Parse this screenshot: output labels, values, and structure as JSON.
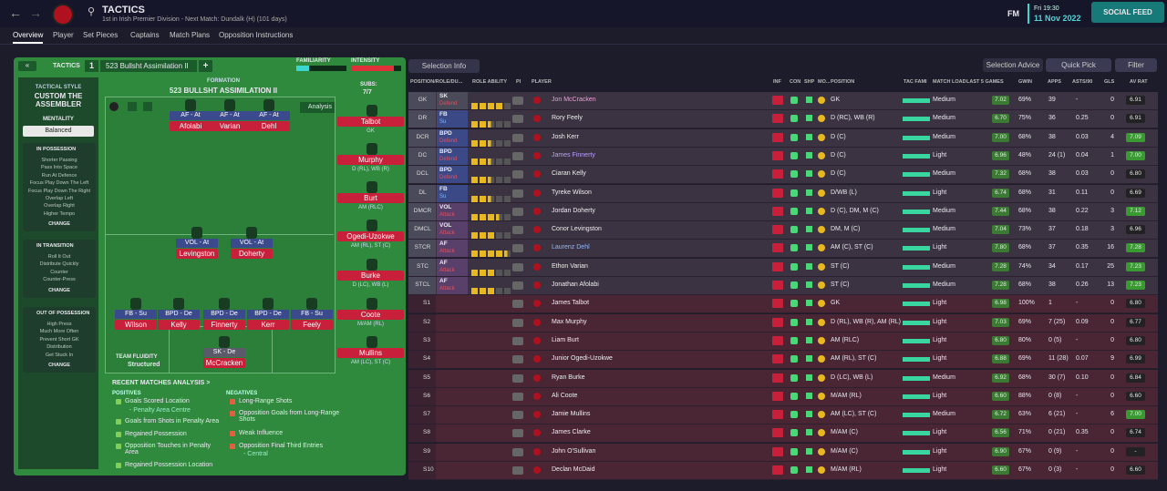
{
  "header": {
    "title": "TACTICS",
    "subtitle": "1st in Irish Premier Division - Next Match: Dundalk (H) (101 days)",
    "fm": "FM",
    "time": "Fri 19:30",
    "date": "11 Nov 2022",
    "social_feed": "SOCIAL FEED"
  },
  "tabs": [
    "Overview",
    "Player",
    "Set Pieces",
    "Captains",
    "Match Plans",
    "Opposition Instructions"
  ],
  "tactics": {
    "label": "TACTICS",
    "slot": "1",
    "name": "523 Bullsht Assimilation II",
    "plus": "+",
    "familiarity": "FAMILIARITY",
    "intensity": "INTENSITY",
    "formation_label": "FORMATION",
    "formation": "523 BULLSHT ASSIMILATION II",
    "subs_label": "SUBS:",
    "subs_count": "7/7",
    "analysis": "Analysis",
    "style_label": "TACTICAL STYLE",
    "style": "CUSTOM THE ASSEMBLER",
    "mentality_label": "MENTALITY",
    "mentality": "Balanced",
    "sections": [
      {
        "title": "IN POSSESSION",
        "items": [
          "Shorter Passing",
          "Pass Into Space",
          "Run At Defence",
          "Focus Play Down The Left",
          "Focus Play Down The Right",
          "Overlap Left",
          "Overlap Right",
          "Higher Tempo"
        ],
        "change": "CHANGE"
      },
      {
        "title": "IN TRANSITION",
        "items": [
          "Roll It Out",
          "Distribute Quickly",
          "Counter",
          "Counter-Press"
        ],
        "change": "CHANGE"
      },
      {
        "title": "OUT OF POSSESSION",
        "items": [
          "High Press",
          "Much More Often",
          "Prevent Short GK",
          "Distribution",
          "Get Stuck In"
        ],
        "change": "CHANGE"
      }
    ],
    "fluidity_label": "TEAM FLUIDITY",
    "fluidity": "Structured",
    "pitch": [
      {
        "role": "AF - At",
        "name": "Afolabi"
      },
      {
        "role": "AF - At",
        "name": "Varian"
      },
      {
        "role": "AF - At",
        "name": "Dehl"
      },
      {
        "role": "VOL - At",
        "name": "Levingston"
      },
      {
        "role": "VOL - At",
        "name": "Doherty"
      },
      {
        "role": "FB - Su",
        "name": "Wilson"
      },
      {
        "role": "BPD - De",
        "name": "Kelly"
      },
      {
        "role": "BPD - De",
        "name": "Finnerty"
      },
      {
        "role": "BPD - De",
        "name": "Kerr"
      },
      {
        "role": "FB - Su",
        "name": "Feely"
      },
      {
        "role": "SK - De",
        "name": "McCracken"
      }
    ],
    "subs": [
      {
        "name": "Talbot",
        "pos": "GK"
      },
      {
        "name": "Murphy",
        "pos": "D (RL), WB (R)"
      },
      {
        "name": "Burt",
        "pos": "AM (RLC)"
      },
      {
        "name": "Ogedi-Uzokwe",
        "pos": "AM (RL), ST (C)"
      },
      {
        "name": "Burke",
        "pos": "D (LC), WB (L)"
      },
      {
        "name": "Coote",
        "pos": "M/AM (RL)"
      },
      {
        "name": "Mullins",
        "pos": "AM (LC), ST (C)"
      }
    ],
    "recent": {
      "title": "RECENT MATCHES ANALYSIS >",
      "positives_label": "POSITIVES",
      "negatives_label": "NEGATIVES",
      "positives": [
        {
          "text": "Goals Scored Location",
          "sub": "- Penalty Area Centre"
        },
        {
          "text": "Goals from Shots in Penalty Area"
        },
        {
          "text": "Regained Possession"
        },
        {
          "text": "Opposition Touches in Penalty Area"
        },
        {
          "text": "Regained Possession Location"
        }
      ],
      "negatives": [
        {
          "text": "Long-Range Shots"
        },
        {
          "text": "Opposition Goals from Long-Range Shots"
        },
        {
          "text": "Weak Influence"
        },
        {
          "text": "Opposition Final Third Entries",
          "sub": "- Central"
        }
      ]
    }
  },
  "table": {
    "toolbar": {
      "selection_info": "Selection Info",
      "selection_advice": "Selection Advice",
      "quick_pick": "Quick Pick",
      "filter": "Filter"
    },
    "columns": [
      "POSITION/ROLE/DU...",
      "ROLE ABILITY",
      "PI",
      "PLAYER",
      "INF",
      "CON",
      "SHP",
      "MO...",
      "POSITION",
      "TAC FAMI",
      "MATCH LOAD",
      "LAST 5 GAMES",
      "GWIN",
      "APPS",
      "ASTS/90",
      "GLS",
      "AV RAT"
    ],
    "rows": [
      {
        "pos": "GK",
        "role": "SK",
        "duty": "Defend",
        "stars": 4,
        "player": "Jon McCracken",
        "position": "GK",
        "load": "Medium",
        "form": "7.02",
        "gwin": "69%",
        "apps": "39",
        "asts": "-",
        "gls": "0",
        "av": "6.91"
      },
      {
        "pos": "DR",
        "role": "FB",
        "duty": "Su",
        "stars": 2.5,
        "player": "Rory Feely",
        "position": "D (RC), WB (R)",
        "load": "Medium",
        "form": "6.70",
        "gwin": "75%",
        "apps": "36",
        "asts": "0.25",
        "gls": "0",
        "av": "6.91"
      },
      {
        "pos": "DCR",
        "role": "BPD",
        "duty": "Defend",
        "stars": 2.5,
        "player": "Josh Kerr",
        "position": "D (C)",
        "load": "Medium",
        "form": "7.00",
        "gwin": "68%",
        "apps": "38",
        "asts": "0.03",
        "gls": "4",
        "av": "7.09"
      },
      {
        "pos": "DC",
        "role": "BPD",
        "duty": "Defend",
        "stars": 2.5,
        "player": "James Finnerty",
        "position": "D (C)",
        "load": "Light",
        "form": "6.96",
        "gwin": "48%",
        "apps": "24 (1)",
        "asts": "0.04",
        "gls": "1",
        "av": "7.00"
      },
      {
        "pos": "DCL",
        "role": "BPD",
        "duty": "Defend",
        "stars": 2.5,
        "player": "Ciaran Kelly",
        "position": "D (C)",
        "load": "Medium",
        "form": "7.32",
        "gwin": "68%",
        "apps": "38",
        "asts": "0.03",
        "gls": "0",
        "av": "6.80"
      },
      {
        "pos": "DL",
        "role": "FB",
        "duty": "Su",
        "stars": 2.5,
        "player": "Tyreke Wilson",
        "position": "D/WB (L)",
        "load": "Light",
        "form": "6.74",
        "gwin": "68%",
        "apps": "31",
        "asts": "0.11",
        "gls": "0",
        "av": "6.69"
      },
      {
        "pos": "DMCR",
        "role": "VOL",
        "duty": "Attack",
        "stars": 3.5,
        "player": "Jordan Doherty",
        "position": "D (C), DM, M (C)",
        "load": "Medium",
        "form": "7.44",
        "gwin": "68%",
        "apps": "38",
        "asts": "0.22",
        "gls": "3",
        "av": "7.12"
      },
      {
        "pos": "DMCL",
        "role": "VOL",
        "duty": "Attack",
        "stars": 3,
        "player": "Conor Levingston",
        "position": "DM, M (C)",
        "load": "Medium",
        "form": "7.04",
        "gwin": "73%",
        "apps": "37",
        "asts": "0.18",
        "gls": "3",
        "av": "6.96"
      },
      {
        "pos": "STCR",
        "role": "AF",
        "duty": "Attack",
        "stars": 4.5,
        "player": "Laurenz Dehl",
        "position": "AM (C), ST (C)",
        "load": "Light",
        "form": "7.80",
        "gwin": "68%",
        "apps": "37",
        "asts": "0.35",
        "gls": "16",
        "av": "7.28"
      },
      {
        "pos": "STC",
        "role": "AF",
        "duty": "Attack",
        "stars": 3,
        "player": "Ethon Varian",
        "position": "ST (C)",
        "load": "Medium",
        "form": "7.28",
        "gwin": "74%",
        "apps": "34",
        "asts": "0.17",
        "gls": "25",
        "av": "7.23"
      },
      {
        "pos": "STCL",
        "role": "AF",
        "duty": "Attack",
        "stars": 3,
        "player": "Jonathan Afolabi",
        "position": "ST (C)",
        "load": "Medium",
        "form": "7.28",
        "gwin": "68%",
        "apps": "38",
        "asts": "0.26",
        "gls": "13",
        "av": "7.23"
      },
      {
        "pos": "S1",
        "player": "James Talbot",
        "position": "GK",
        "load": "Light",
        "form": "6.98",
        "gwin": "100%",
        "apps": "1",
        "asts": "-",
        "gls": "0",
        "av": "6.80"
      },
      {
        "pos": "S2",
        "player": "Max Murphy",
        "position": "D (RL), WB (R), AM (RL)",
        "load": "Light",
        "form": "7.03",
        "gwin": "69%",
        "apps": "7 (25)",
        "asts": "0.09",
        "gls": "0",
        "av": "6.77"
      },
      {
        "pos": "S3",
        "player": "Liam Burt",
        "position": "AM (RLC)",
        "load": "Light",
        "form": "6.80",
        "gwin": "80%",
        "apps": "0 (5)",
        "asts": "-",
        "gls": "0",
        "av": "6.80"
      },
      {
        "pos": "S4",
        "player": "Junior Ogedi-Uzokwe",
        "position": "AM (RL), ST (C)",
        "load": "Light",
        "form": "6.88",
        "gwin": "69%",
        "apps": "11 (28)",
        "asts": "0.07",
        "gls": "9",
        "av": "6.99"
      },
      {
        "pos": "S5",
        "player": "Ryan Burke",
        "position": "D (LC), WB (L)",
        "load": "Medium",
        "form": "6.92",
        "gwin": "68%",
        "apps": "30 (7)",
        "asts": "0.10",
        "gls": "0",
        "av": "6.84"
      },
      {
        "pos": "S6",
        "player": "Ali Coote",
        "position": "M/AM (RL)",
        "load": "Light",
        "form": "6.60",
        "gwin": "88%",
        "apps": "0 (8)",
        "asts": "-",
        "gls": "0",
        "av": "6.60"
      },
      {
        "pos": "S7",
        "player": "Jamie Mullins",
        "position": "AM (LC), ST (C)",
        "load": "Medium",
        "form": "6.72",
        "gwin": "63%",
        "apps": "6 (21)",
        "asts": "-",
        "gls": "6",
        "av": "7.00"
      },
      {
        "pos": "S8",
        "player": "James Clarke",
        "position": "M/AM (C)",
        "load": "Light",
        "form": "6.56",
        "gwin": "71%",
        "apps": "0 (21)",
        "asts": "0.35",
        "gls": "0",
        "av": "6.74"
      },
      {
        "pos": "S9",
        "player": "John O'Sullivan",
        "position": "M/AM (C)",
        "load": "Light",
        "form": "6.90",
        "gwin": "67%",
        "apps": "0 (9)",
        "asts": "-",
        "gls": "0",
        "av": "-"
      },
      {
        "pos": "S10",
        "player": "Declan McDaid",
        "position": "M/AM (RL)",
        "load": "Light",
        "form": "6.60",
        "gwin": "67%",
        "apps": "0 (3)",
        "asts": "-",
        "gls": "0",
        "av": "6.60"
      }
    ]
  }
}
